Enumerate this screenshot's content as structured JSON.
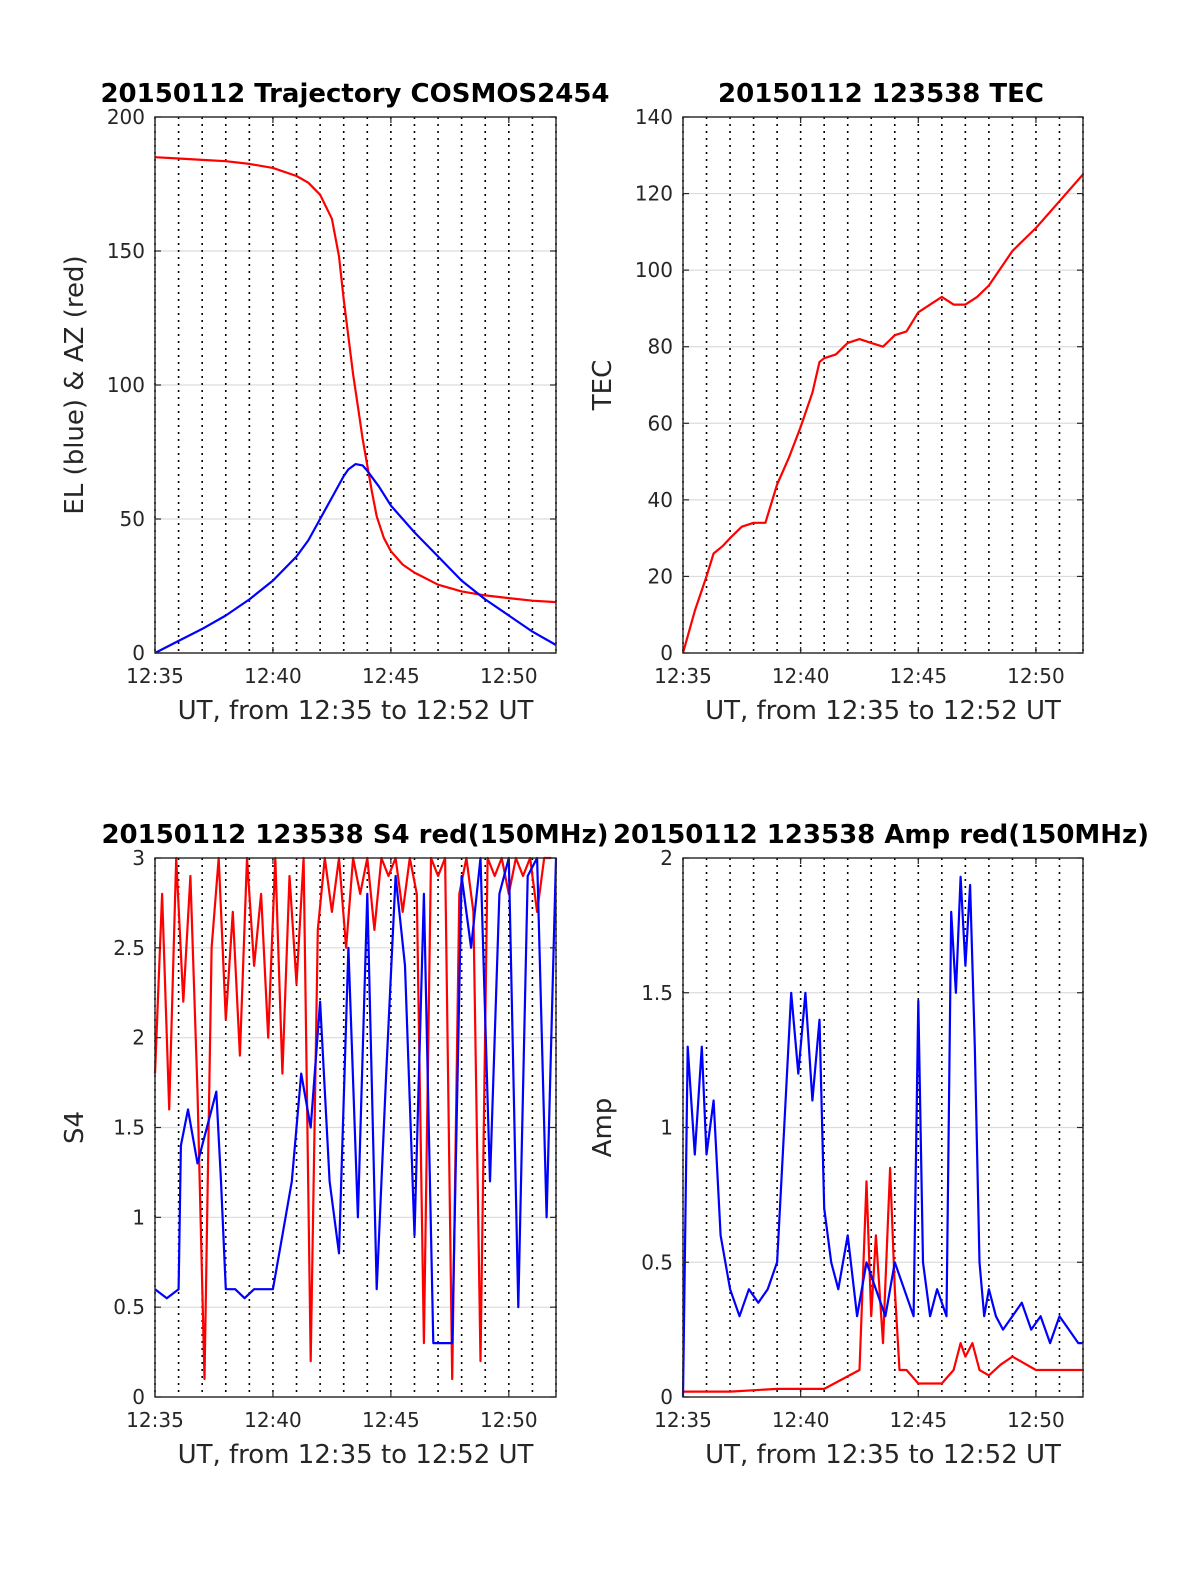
{
  "chart_data": [
    {
      "type": "line",
      "title": "20150112 Trajectory COSMOS2454",
      "xlabel": "UT, from 12:35 to 12:52 UT",
      "ylabel": "EL (blue) & AZ (red)",
      "xlim": [
        0,
        17
      ],
      "ylim": [
        0,
        200
      ],
      "xticks": [
        {
          "v": 0,
          "label": "12:35"
        },
        {
          "v": 5,
          "label": "12:40"
        },
        {
          "v": 10,
          "label": "12:45"
        },
        {
          "v": 15,
          "label": "12:50"
        }
      ],
      "yticks": [
        {
          "v": 0,
          "label": "0"
        },
        {
          "v": 50,
          "label": "50"
        },
        {
          "v": 100,
          "label": "100"
        },
        {
          "v": 150,
          "label": "150"
        },
        {
          "v": 200,
          "label": "200"
        }
      ],
      "grid": true,
      "series": [
        {
          "color": "#ff0000",
          "x": [
            0.0,
            1,
            2,
            3,
            4,
            5,
            6,
            6.5,
            7,
            7.5,
            7.8,
            8.0,
            8.2,
            8.4,
            8.6,
            8.8,
            9.0,
            9.2,
            9.4,
            9.7,
            10.0,
            10.5,
            11,
            12,
            13,
            14,
            15,
            16,
            17
          ],
          "y": [
            185,
            184.5,
            184,
            183.5,
            182.5,
            181,
            178,
            175.5,
            171,
            162,
            148,
            132,
            118,
            104,
            92,
            80,
            70,
            60,
            51,
            43,
            38,
            33,
            30,
            25.5,
            23,
            21.5,
            20.5,
            19.5,
            19
          ]
        },
        {
          "color": "#0000ff",
          "x": [
            0.0,
            1,
            2,
            3,
            4,
            5,
            6,
            6.5,
            7,
            7.5,
            8.0,
            8.2,
            8.5,
            8.8,
            9.0,
            9.5,
            10,
            11,
            12,
            13,
            14,
            15,
            16,
            17
          ],
          "y": [
            0,
            4.5,
            9,
            14,
            20,
            27,
            36,
            42,
            50,
            58,
            66,
            68.5,
            70.5,
            70,
            68,
            62,
            55,
            45,
            36,
            27,
            20,
            14,
            8,
            3
          ]
        }
      ]
    },
    {
      "type": "line",
      "title": "20150112 123538 TEC",
      "xlabel": "UT, from 12:35 to 12:52 UT",
      "ylabel": "TEC",
      "xlim": [
        0,
        17
      ],
      "ylim": [
        0,
        140
      ],
      "xticks": [
        {
          "v": 0,
          "label": "12:35"
        },
        {
          "v": 5,
          "label": "12:40"
        },
        {
          "v": 10,
          "label": "12:45"
        },
        {
          "v": 15,
          "label": "12:50"
        }
      ],
      "yticks": [
        {
          "v": 0,
          "label": "0"
        },
        {
          "v": 20,
          "label": "20"
        },
        {
          "v": 40,
          "label": "40"
        },
        {
          "v": 60,
          "label": "60"
        },
        {
          "v": 80,
          "label": "80"
        },
        {
          "v": 100,
          "label": "100"
        },
        {
          "v": 120,
          "label": "120"
        },
        {
          "v": 140,
          "label": "140"
        }
      ],
      "grid": true,
      "series": [
        {
          "color": "#ff0000",
          "x": [
            0.0,
            0.5,
            1.0,
            1.3,
            1.7,
            2.0,
            2.5,
            3.0,
            3.5,
            4.0,
            4.5,
            5.0,
            5.5,
            5.8,
            6.0,
            6.5,
            7.0,
            7.5,
            8.0,
            8.5,
            9.0,
            9.5,
            10.0,
            10.5,
            11.0,
            11.5,
            12.0,
            12.5,
            13.0,
            14.0,
            15.0,
            16.0,
            17.0
          ],
          "y": [
            0,
            11,
            20,
            26,
            28,
            30,
            33,
            34,
            34,
            44,
            51,
            59,
            68,
            76,
            77,
            78,
            81,
            82,
            81,
            80,
            83,
            84,
            89,
            91,
            93,
            91,
            91,
            93,
            96,
            105,
            111,
            118,
            125
          ]
        }
      ]
    },
    {
      "type": "line",
      "title": "20150112 123538 S4 red(150MHz)",
      "xlabel": "UT, from 12:35 to 12:52 UT",
      "ylabel": "S4",
      "xlim": [
        0,
        17
      ],
      "ylim": [
        0,
        3
      ],
      "xticks": [
        {
          "v": 0,
          "label": "12:35"
        },
        {
          "v": 5,
          "label": "12:40"
        },
        {
          "v": 10,
          "label": "12:45"
        },
        {
          "v": 15,
          "label": "12:50"
        }
      ],
      "yticks": [
        {
          "v": 0,
          "label": "0"
        },
        {
          "v": 0.5,
          "label": "0.5"
        },
        {
          "v": 1,
          "label": "1"
        },
        {
          "v": 1.5,
          "label": "1.5"
        },
        {
          "v": 2,
          "label": "2"
        },
        {
          "v": 2.5,
          "label": "2.5"
        },
        {
          "v": 3,
          "label": "3"
        }
      ],
      "grid": true,
      "series": [
        {
          "color": "#ff0000",
          "x": [
            0.0,
            0.3,
            0.6,
            0.9,
            1.2,
            1.5,
            1.8,
            2.1,
            2.4,
            2.7,
            3.0,
            3.3,
            3.6,
            3.9,
            4.2,
            4.5,
            4.8,
            5.1,
            5.4,
            5.7,
            6.0,
            6.3,
            6.6,
            6.9,
            7.2,
            7.5,
            7.8,
            8.1,
            8.4,
            8.7,
            9.0,
            9.3,
            9.6,
            9.9,
            10.2,
            10.5,
            10.8,
            11.1,
            11.4,
            11.7,
            12.0,
            12.3,
            12.6,
            12.9,
            13.2,
            13.5,
            13.8,
            14.1,
            14.4,
            14.7,
            15.0,
            15.3,
            15.6,
            15.9,
            16.2,
            16.5,
            16.8
          ],
          "y": [
            1.8,
            2.8,
            1.6,
            3.0,
            2.2,
            2.9,
            1.7,
            0.1,
            2.5,
            3.0,
            2.1,
            2.7,
            1.9,
            3.0,
            2.4,
            2.8,
            2.0,
            3.0,
            1.8,
            2.9,
            2.3,
            3.0,
            0.2,
            2.6,
            3.0,
            2.7,
            3.0,
            2.5,
            3.0,
            2.8,
            3.0,
            2.6,
            3.0,
            2.9,
            3.0,
            2.7,
            3.0,
            2.8,
            0.3,
            3.0,
            2.9,
            3.0,
            0.1,
            2.8,
            3.0,
            2.7,
            0.2,
            3.0,
            2.9,
            3.0,
            2.8,
            3.0,
            2.9,
            3.0,
            2.7,
            3.0,
            3.0
          ]
        },
        {
          "color": "#0000ff",
          "x": [
            0.0,
            0.5,
            1.0,
            1.1,
            1.4,
            1.8,
            2.2,
            2.6,
            2.8,
            3.0,
            3.4,
            3.8,
            4.2,
            4.6,
            5.0,
            5.4,
            5.8,
            6.2,
            6.6,
            7.0,
            7.4,
            7.8,
            8.2,
            8.6,
            9.0,
            9.4,
            9.8,
            10.2,
            10.6,
            11.0,
            11.4,
            11.8,
            12.2,
            12.6,
            13.0,
            13.4,
            13.8,
            14.2,
            14.6,
            15.0,
            15.4,
            15.8,
            16.2,
            16.6,
            17.0
          ],
          "y": [
            0.6,
            0.55,
            0.6,
            1.4,
            1.6,
            1.3,
            1.5,
            1.7,
            1.2,
            0.6,
            0.6,
            0.55,
            0.6,
            0.6,
            0.6,
            0.9,
            1.2,
            1.8,
            1.5,
            2.2,
            1.2,
            0.8,
            2.5,
            1.0,
            2.8,
            0.6,
            1.8,
            2.9,
            2.4,
            0.9,
            2.8,
            0.3,
            0.3,
            0.3,
            2.9,
            2.5,
            3.0,
            1.2,
            2.8,
            3.0,
            0.5,
            2.9,
            3.0,
            1.0,
            3.0
          ]
        }
      ]
    },
    {
      "type": "line",
      "title": "20150112 123538 Amp red(150MHz)",
      "xlabel": "UT, from 12:35 to 12:52 UT",
      "ylabel": "Amp",
      "xlim": [
        0,
        17
      ],
      "ylim": [
        0,
        2
      ],
      "xticks": [
        {
          "v": 0,
          "label": "12:35"
        },
        {
          "v": 5,
          "label": "12:40"
        },
        {
          "v": 10,
          "label": "12:45"
        },
        {
          "v": 15,
          "label": "12:50"
        }
      ],
      "yticks": [
        {
          "v": 0,
          "label": "0"
        },
        {
          "v": 0.5,
          "label": "0.5"
        },
        {
          "v": 1,
          "label": "1"
        },
        {
          "v": 1.5,
          "label": "1.5"
        },
        {
          "v": 2,
          "label": "2"
        }
      ],
      "grid": true,
      "series": [
        {
          "color": "#ff0000",
          "x": [
            0.0,
            2.0,
            4.0,
            6.0,
            7.5,
            7.8,
            8.0,
            8.2,
            8.5,
            8.8,
            9.0,
            9.2,
            9.5,
            10.0,
            11.0,
            11.5,
            11.8,
            12.0,
            12.3,
            12.6,
            13.0,
            13.5,
            14.0,
            15.0,
            16.0,
            17.0
          ],
          "y": [
            0.02,
            0.02,
            0.03,
            0.03,
            0.1,
            0.8,
            0.3,
            0.6,
            0.2,
            0.85,
            0.4,
            0.1,
            0.1,
            0.05,
            0.05,
            0.1,
            0.2,
            0.15,
            0.2,
            0.1,
            0.08,
            0.12,
            0.15,
            0.1,
            0.1,
            0.1
          ]
        },
        {
          "color": "#0000ff",
          "x": [
            0.0,
            0.2,
            0.5,
            0.8,
            1.0,
            1.3,
            1.6,
            2.0,
            2.4,
            2.8,
            3.2,
            3.6,
            4.0,
            4.3,
            4.6,
            4.9,
            5.2,
            5.5,
            5.8,
            6.0,
            6.3,
            6.6,
            7.0,
            7.4,
            7.8,
            8.2,
            8.6,
            9.0,
            9.4,
            9.8,
            10.0,
            10.2,
            10.5,
            10.8,
            11.0,
            11.2,
            11.4,
            11.6,
            11.8,
            12.0,
            12.2,
            12.4,
            12.6,
            12.8,
            13.0,
            13.3,
            13.6,
            14.0,
            14.4,
            14.8,
            15.2,
            15.6,
            16.0,
            16.4,
            16.8,
            17.0
          ],
          "y": [
            0.0,
            1.3,
            0.9,
            1.3,
            0.9,
            1.1,
            0.6,
            0.4,
            0.3,
            0.4,
            0.35,
            0.4,
            0.5,
            1.0,
            1.5,
            1.2,
            1.5,
            1.1,
            1.4,
            0.7,
            0.5,
            0.4,
            0.6,
            0.3,
            0.5,
            0.4,
            0.3,
            0.5,
            0.4,
            0.3,
            1.47,
            0.5,
            0.3,
            0.4,
            0.35,
            0.3,
            1.8,
            1.5,
            1.93,
            1.6,
            1.9,
            1.3,
            0.5,
            0.3,
            0.4,
            0.3,
            0.25,
            0.3,
            0.35,
            0.25,
            0.3,
            0.2,
            0.3,
            0.25,
            0.2,
            0.2
          ]
        }
      ]
    }
  ]
}
